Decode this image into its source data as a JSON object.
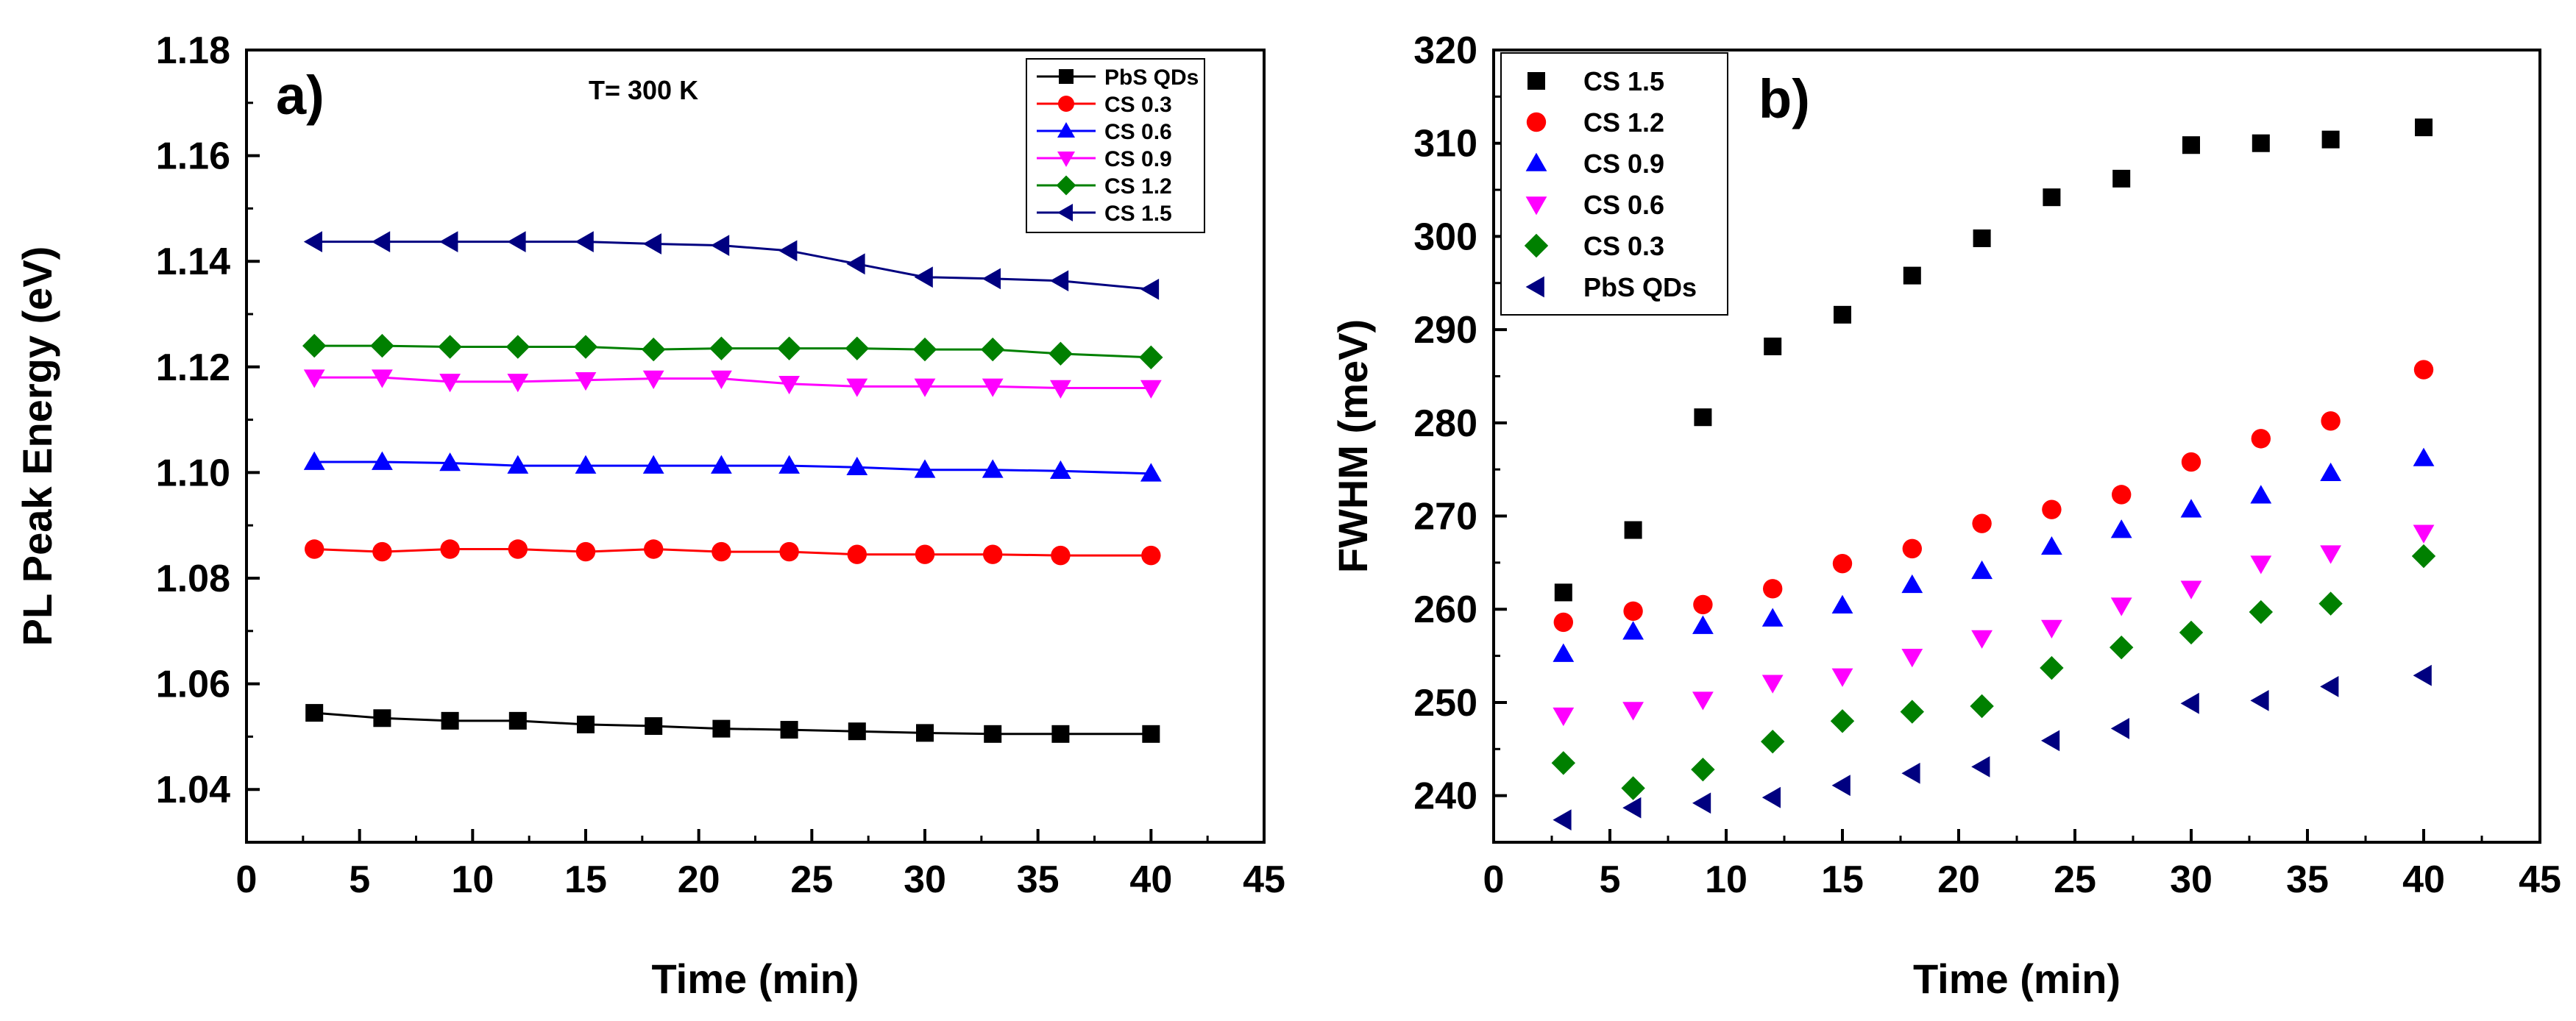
{
  "chart_data": [
    {
      "type": "line",
      "panel_label": "a)",
      "title": "",
      "annotation": "T= 300 K",
      "xlabel": "Time (min)",
      "ylabel": "PL Peak Energy (eV)",
      "xlim": [
        0,
        45
      ],
      "ylim": [
        1.03,
        1.18
      ],
      "xticks": [
        0,
        5,
        10,
        15,
        20,
        25,
        30,
        35,
        40,
        45
      ],
      "xtick_labels": [
        "0",
        "5",
        "10",
        "15",
        "20",
        "25",
        "30",
        "35",
        "40",
        "45"
      ],
      "yticks": [
        1.04,
        1.06,
        1.08,
        1.1,
        1.12,
        1.14,
        1.16,
        1.18
      ],
      "ytick_labels": [
        "1.04",
        "1.06",
        "1.08",
        "1.10",
        "1.12",
        "1.14",
        "1.16",
        "1.18"
      ],
      "grid": false,
      "legend_position": "top-right",
      "x": [
        3,
        6,
        9,
        12,
        15,
        18,
        21,
        24,
        27,
        30,
        33,
        36,
        40
      ],
      "series": [
        {
          "name": "PbS QDs",
          "marker": "square",
          "color": "#000000",
          "values": [
            1.0545,
            1.0535,
            1.053,
            1.053,
            1.0523,
            1.052,
            1.0515,
            1.0513,
            1.051,
            1.0507,
            1.0505,
            1.0505,
            1.0505
          ]
        },
        {
          "name": "CS 0.3",
          "marker": "circle",
          "color": "#ff0000",
          "values": [
            1.0855,
            1.085,
            1.0855,
            1.0855,
            1.085,
            1.0855,
            1.085,
            1.085,
            1.0845,
            1.0845,
            1.0845,
            1.0843,
            1.0843
          ]
        },
        {
          "name": "CS 0.6",
          "marker": "triangle-up",
          "color": "#0000ff",
          "values": [
            1.102,
            1.102,
            1.1018,
            1.1013,
            1.1013,
            1.1013,
            1.1013,
            1.1013,
            1.101,
            1.1005,
            1.1005,
            1.1003,
            1.0998
          ]
        },
        {
          "name": "CS 0.9",
          "marker": "triangle-down",
          "color": "#ff00ff",
          "values": [
            1.118,
            1.118,
            1.1172,
            1.1172,
            1.1175,
            1.1178,
            1.1178,
            1.1168,
            1.1163,
            1.1163,
            1.1163,
            1.116,
            1.116
          ]
        },
        {
          "name": "CS 1.2",
          "marker": "diamond",
          "color": "#008000",
          "values": [
            1.124,
            1.124,
            1.1238,
            1.1238,
            1.1238,
            1.1233,
            1.1235,
            1.1235,
            1.1235,
            1.1233,
            1.1233,
            1.1225,
            1.1218
          ]
        },
        {
          "name": "CS 1.5",
          "marker": "triangle-left",
          "color": "#000080",
          "values": [
            1.1437,
            1.1437,
            1.1437,
            1.1437,
            1.1437,
            1.1433,
            1.143,
            1.142,
            1.1395,
            1.137,
            1.1367,
            1.1363,
            1.1347
          ]
        }
      ]
    },
    {
      "type": "scatter",
      "panel_label": "b)",
      "title": "",
      "xlabel": "Time (min)",
      "ylabel": "FWHM (meV)",
      "xlim": [
        0,
        45
      ],
      "ylim": [
        235,
        320
      ],
      "xticks": [
        0,
        5,
        10,
        15,
        20,
        25,
        30,
        35,
        40,
        45
      ],
      "xtick_labels": [
        "0",
        "5",
        "10",
        "15",
        "20",
        "25",
        "30",
        "35",
        "40",
        "45"
      ],
      "yticks": [
        240,
        250,
        260,
        270,
        280,
        290,
        300,
        310,
        320
      ],
      "ytick_labels": [
        "240",
        "250",
        "260",
        "270",
        "280",
        "290",
        "300",
        "310",
        "320"
      ],
      "grid": false,
      "legend_position": "top-left",
      "x": [
        3,
        6,
        9,
        12,
        15,
        18,
        21,
        24,
        27,
        30,
        33,
        36,
        40
      ],
      "series": [
        {
          "name": "CS 1.5",
          "marker": "square",
          "color": "#000000",
          "values": [
            261.8,
            268.5,
            280.6,
            288.2,
            291.6,
            295.8,
            299.8,
            304.2,
            306.2,
            309.8,
            310.0,
            310.4,
            311.7
          ]
        },
        {
          "name": "CS 1.2",
          "marker": "circle",
          "color": "#ff0000",
          "values": [
            258.6,
            259.8,
            260.5,
            262.2,
            264.9,
            266.5,
            269.2,
            270.7,
            272.3,
            275.8,
            278.3,
            280.2,
            285.7
          ]
        },
        {
          "name": "CS 0.9",
          "marker": "triangle-up",
          "color": "#0000ff",
          "values": [
            255.2,
            257.6,
            258.2,
            259.0,
            260.4,
            262.6,
            264.1,
            266.7,
            268.5,
            270.7,
            272.2,
            274.6,
            276.2
          ]
        },
        {
          "name": "CS 0.6",
          "marker": "triangle-down",
          "color": "#ff00ff",
          "values": [
            248.6,
            249.2,
            250.3,
            252.1,
            252.8,
            254.9,
            256.9,
            258.0,
            260.4,
            262.2,
            264.9,
            266.0,
            268.2
          ]
        },
        {
          "name": "CS 0.3",
          "marker": "diamond",
          "color": "#008000",
          "values": [
            243.5,
            240.8,
            242.8,
            245.8,
            248.0,
            249.0,
            249.6,
            253.7,
            255.9,
            257.5,
            259.7,
            260.6,
            265.7
          ]
        },
        {
          "name": "PbS QDs",
          "marker": "triangle-left",
          "color": "#000080",
          "values": [
            237.4,
            238.7,
            239.2,
            239.8,
            241.1,
            242.4,
            243.1,
            245.9,
            247.2,
            249.9,
            250.2,
            251.7,
            252.9
          ]
        }
      ]
    }
  ]
}
